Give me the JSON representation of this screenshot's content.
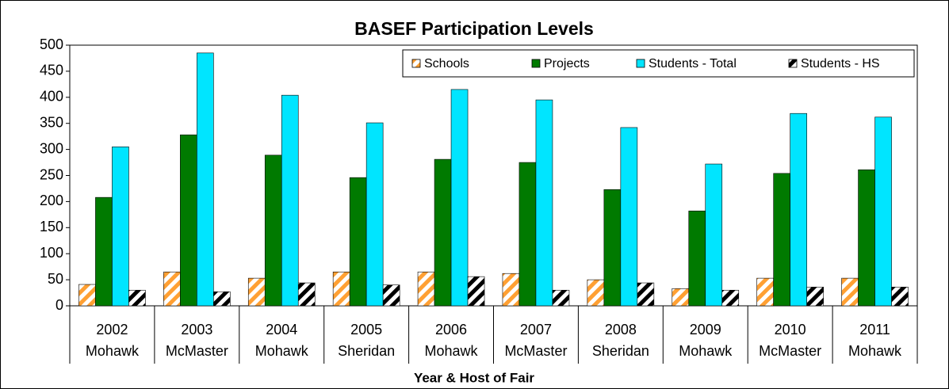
{
  "chart_data": {
    "type": "bar",
    "title": "BASEF Participation Levels",
    "x_label": "Year & Host of Fair",
    "categories": [
      [
        "2002",
        "Mohawk"
      ],
      [
        "2003",
        "McMaster"
      ],
      [
        "2004",
        "Mohawk"
      ],
      [
        "2005",
        "Sheridan"
      ],
      [
        "2006",
        "Mohawk"
      ],
      [
        "2007",
        "McMaster"
      ],
      [
        "2008",
        "Sheridan"
      ],
      [
        "2009",
        "Mohawk"
      ],
      [
        "2010",
        "McMaster"
      ],
      [
        "2011",
        "Mohawk"
      ]
    ],
    "series": [
      {
        "name": "Schools",
        "color": "#ffa033",
        "pattern": "hatch",
        "values": [
          41,
          65,
          53,
          65,
          65,
          62,
          50,
          33,
          53,
          53
        ]
      },
      {
        "name": "Projects",
        "color": "#007a00",
        "values": [
          208,
          328,
          289,
          246,
          281,
          275,
          223,
          182,
          254,
          261
        ]
      },
      {
        "name": "Students - Total",
        "color": "#00e5ff",
        "values": [
          305,
          485,
          404,
          351,
          415,
          395,
          342,
          272,
          369,
          362
        ]
      },
      {
        "name": "Students - HS",
        "color": "#000000",
        "pattern": "hatch",
        "values": [
          30,
          27,
          44,
          40,
          56,
          30,
          44,
          30,
          36,
          36
        ]
      }
    ],
    "ylim": [
      0,
      500
    ],
    "yticks": [
      0,
      50,
      100,
      150,
      200,
      250,
      300,
      350,
      400,
      450,
      500
    ],
    "grid": false,
    "legend": "top-right"
  }
}
